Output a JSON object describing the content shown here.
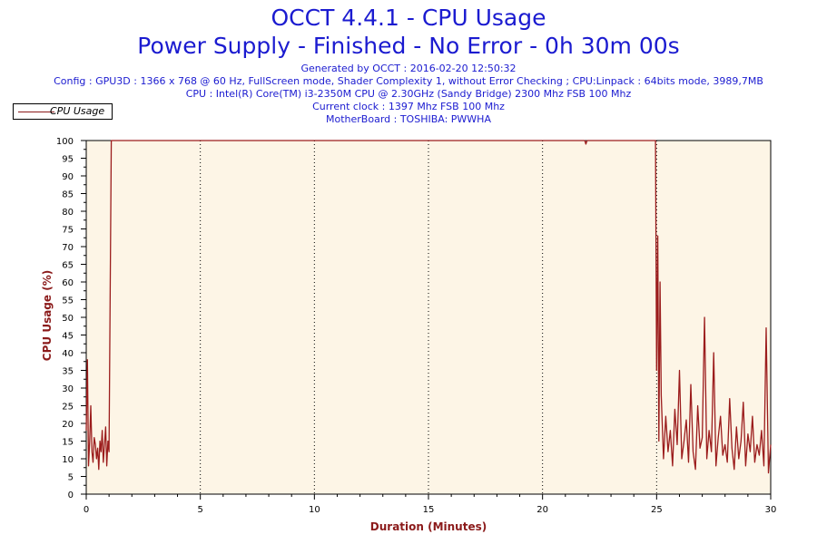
{
  "header": {
    "title": "OCCT 4.4.1 - CPU Usage",
    "subtitle": "Power Supply - Finished - No Error - 0h 30m 00s",
    "info_lines": [
      "Generated by OCCT : 2016-02-20 12:50:32",
      "Config : GPU3D : 1366 x 768 @ 60 Hz, FullScreen mode, Shader Complexity 1, without Error Checking ; CPU:Linpack : 64bits mode, 3989,7MB",
      "CPU : Intel(R) Core(TM) i3-2350M CPU @ 2.30GHz (Sandy Bridge) 2300 Mhz FSB 100 Mhz",
      "Current clock : 1397 Mhz FSB 100 Mhz",
      "MotherBoard : TOSHIBA: PWWHA"
    ]
  },
  "legend": {
    "label": "CPU Usage"
  },
  "chart_data": {
    "type": "line",
    "title": "OCCT 4.4.1 - CPU Usage",
    "subtitle": "Power Supply - Finished - No Error - 0h 30m 00s",
    "xlabel": "Duration (Minutes)",
    "ylabel": "CPU Usage (%)",
    "xlim": [
      0,
      30
    ],
    "ylim": [
      0,
      100
    ],
    "xticks": [
      "0",
      "5",
      "10",
      "15",
      "20",
      "25",
      "30"
    ],
    "yticks": [
      "0",
      "5",
      "10",
      "15",
      "20",
      "25",
      "30",
      "35",
      "40",
      "45",
      "50",
      "55",
      "60",
      "65",
      "70",
      "75",
      "80",
      "85",
      "90",
      "95",
      "100"
    ],
    "grid": "vertical dotted",
    "legend_position": "top-left",
    "colors": {
      "series": "#9b1c1c",
      "plot_bg": "#fdf5e6",
      "axis_label": "#8b1a1a",
      "title": "#1b1bd0"
    },
    "series": [
      {
        "name": "CPU Usage",
        "x": [
          0,
          0.05,
          0.1,
          0.15,
          0.2,
          0.25,
          0.3,
          0.35,
          0.4,
          0.45,
          0.5,
          0.55,
          0.6,
          0.65,
          0.7,
          0.75,
          0.8,
          0.85,
          0.9,
          0.95,
          1.0,
          1.05,
          1.1,
          1.15,
          1.2,
          5,
          10,
          15,
          20,
          21.85,
          21.9,
          21.95,
          24.9,
          24.95,
          25.0,
          25.05,
          25.1,
          25.15,
          25.2,
          25.3,
          25.4,
          25.5,
          25.6,
          25.7,
          25.8,
          25.9,
          26.0,
          26.1,
          26.2,
          26.3,
          26.4,
          26.5,
          26.6,
          26.7,
          26.8,
          26.9,
          27.0,
          27.1,
          27.2,
          27.3,
          27.4,
          27.5,
          27.6,
          27.7,
          27.8,
          27.9,
          28.0,
          28.1,
          28.2,
          28.3,
          28.4,
          28.5,
          28.6,
          28.7,
          28.8,
          28.9,
          29.0,
          29.1,
          29.2,
          29.3,
          29.4,
          29.5,
          29.6,
          29.7,
          29.8,
          29.9,
          30.0
        ],
        "values": [
          18,
          38,
          8,
          15,
          25,
          12,
          9,
          16,
          14,
          10,
          13,
          7,
          15,
          12,
          18,
          9,
          14,
          19,
          8,
          15,
          12,
          58,
          100,
          100,
          100,
          100,
          100,
          100,
          100,
          100,
          99,
          100,
          100,
          100,
          35,
          73,
          15,
          60,
          28,
          10,
          22,
          12,
          18,
          8,
          24,
          14,
          35,
          10,
          15,
          21,
          9,
          31,
          12,
          7,
          25,
          13,
          16,
          50,
          10,
          18,
          12,
          40,
          8,
          16,
          22,
          11,
          14,
          9,
          27,
          13,
          7,
          19,
          10,
          15,
          26,
          8,
          17,
          12,
          22,
          9,
          14,
          11,
          18,
          8,
          47,
          6,
          14
        ]
      }
    ]
  }
}
